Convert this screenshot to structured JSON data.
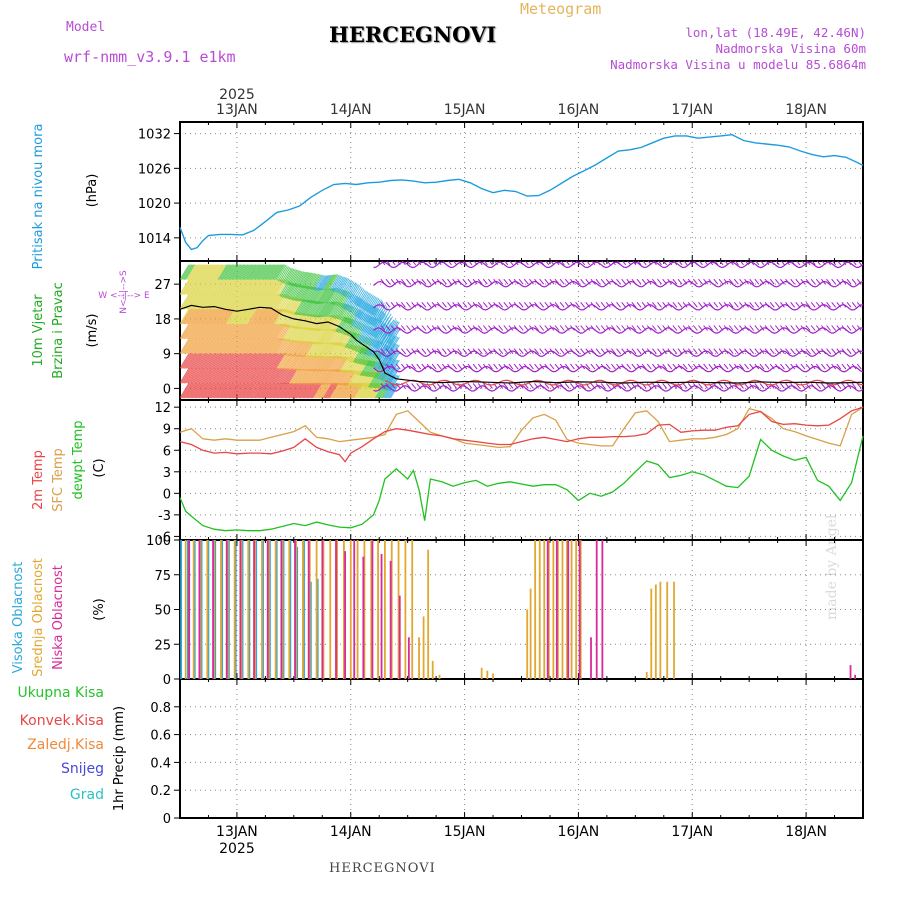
{
  "header": {
    "title": "HERCEGNOVI",
    "subtitle": "Meteogram",
    "model_label": "Model",
    "model_value": "wrf-nmm_v3.9.1 e1km",
    "location_coords": "lon,lat (18.49E, 42.46N)",
    "elevation": "Nadmorska Visina 60m",
    "model_elevation": "Nadmorska Visina u modelu 85.6864m",
    "footer_title": "HERCEGNOVI",
    "watermark": "made by Angel"
  },
  "colors": {
    "pressure": "#1e9be0",
    "wind_label": "#22aa22",
    "wind_barbs": "#a020c8",
    "wind_speed_line": "#000000",
    "temp_2m": "#e84646",
    "sfc_temp": "#d8a048",
    "dewpoint": "#22c022",
    "high_cloud": "#2aa8d8",
    "mid_cloud": "#e0a830",
    "low_cloud": "#d82a9a",
    "precip_total": "#2ac22a",
    "precip_conv": "#e84646",
    "precip_frozen": "#f08a3a",
    "precip_snow": "#4646e0",
    "precip_hail": "#2ac2c2"
  },
  "chart_data": [
    {
      "type": "line",
      "panel": "pressure",
      "xlabel_top_year": "2025",
      "x_ticks": [
        "13JAN",
        "14JAN",
        "15JAN",
        "16JAN",
        "17JAN",
        "18JAN"
      ],
      "xlim_days": [
        12.5,
        18.5
      ],
      "ylabel_lines": [
        "Pritisak na nivou mora",
        "(hPa)"
      ],
      "yticks": [
        1014,
        1020,
        1026,
        1032
      ],
      "ylim": [
        1010,
        1034
      ],
      "series": [
        {
          "name": "Pritisak na nivou mora",
          "x": [
            12.5,
            12.55,
            12.6,
            12.65,
            12.7,
            12.75,
            12.85,
            12.95,
            13.05,
            13.15,
            13.25,
            13.35,
            13.45,
            13.55,
            13.65,
            13.75,
            13.85,
            13.95,
            14.05,
            14.15,
            14.25,
            14.35,
            14.45,
            14.55,
            14.65,
            14.75,
            14.85,
            14.95,
            15.05,
            15.15,
            15.25,
            15.35,
            15.45,
            15.55,
            15.65,
            15.75,
            15.85,
            15.95,
            16.05,
            16.15,
            16.25,
            16.35,
            16.45,
            16.55,
            16.65,
            16.75,
            16.85,
            16.95,
            17.05,
            17.15,
            17.25,
            17.35,
            17.45,
            17.55,
            17.65,
            17.75,
            17.85,
            17.95,
            18.05,
            18.15,
            18.25,
            18.35,
            18.45,
            18.5
          ],
          "y": [
            1015.8,
            1013.2,
            1012.0,
            1012.3,
            1013.5,
            1014.4,
            1014.6,
            1014.6,
            1014.5,
            1015.3,
            1016.8,
            1018.4,
            1018.8,
            1019.5,
            1021.0,
            1022.2,
            1023.2,
            1023.4,
            1023.2,
            1023.5,
            1023.6,
            1023.9,
            1024.0,
            1023.8,
            1023.5,
            1023.6,
            1023.9,
            1024.1,
            1023.5,
            1022.5,
            1021.8,
            1022.2,
            1022.0,
            1021.2,
            1021.3,
            1022.2,
            1023.4,
            1024.6,
            1025.6,
            1026.6,
            1027.8,
            1029.0,
            1029.2,
            1029.6,
            1030.4,
            1031.2,
            1031.6,
            1031.6,
            1031.2,
            1031.4,
            1031.6,
            1031.8,
            1030.8,
            1030.4,
            1030.2,
            1030.0,
            1029.7,
            1029.0,
            1028.4,
            1028.0,
            1028.2,
            1027.9,
            1027.0,
            1026.5
          ]
        }
      ]
    },
    {
      "type": "line",
      "panel": "wind",
      "ylabel_lines": [
        "10m Vjetar",
        "Brzina i Pravac",
        "(m/s)"
      ],
      "compass_label": "W <--|--> E",
      "compass_vertical": "N<--|-->S",
      "yticks": [
        0,
        9,
        18,
        27
      ],
      "ylim": [
        -3,
        33
      ],
      "series": [
        {
          "name": "10m Vjetar Brzina",
          "x": [
            12.5,
            12.6,
            12.7,
            12.8,
            12.9,
            13.0,
            13.1,
            13.2,
            13.3,
            13.4,
            13.5,
            13.6,
            13.7,
            13.8,
            13.9,
            14.0,
            14.05,
            14.1,
            14.15,
            14.2,
            14.25,
            14.3,
            14.4,
            14.6,
            14.8,
            15.0,
            15.2,
            15.4,
            15.6,
            15.8,
            16.0,
            16.2,
            16.4,
            16.6,
            16.8,
            17.0,
            17.2,
            17.4,
            17.6,
            17.8,
            18.0,
            18.2,
            18.4,
            18.5
          ],
          "y": [
            20.5,
            21.5,
            21.0,
            21.2,
            20.5,
            20.0,
            20.5,
            21.0,
            20.8,
            19.0,
            18.0,
            17.5,
            16.8,
            17.2,
            16.0,
            14.0,
            12.5,
            11.5,
            10.5,
            9.5,
            7.5,
            4.0,
            2.5,
            1.8,
            1.5,
            1.8,
            1.6,
            1.4,
            1.8,
            1.5,
            1.7,
            1.6,
            1.4,
            1.6,
            1.5,
            1.6,
            1.5,
            1.4,
            1.7,
            1.5,
            1.6,
            1.4,
            1.5,
            1.6
          ]
        }
      ]
    },
    {
      "type": "line",
      "panel": "temperature",
      "ylabel_lines": [
        "2m Temp",
        "SFC Temp",
        "dewpt Temp",
        "(C)"
      ],
      "yticks": [
        -6,
        -3,
        0,
        3,
        6,
        9,
        12
      ],
      "ylim": [
        -6.5,
        13
      ],
      "series": [
        {
          "name": "2m Temp",
          "x": [
            12.5,
            12.6,
            12.7,
            12.8,
            12.9,
            13.0,
            13.1,
            13.2,
            13.3,
            13.4,
            13.5,
            13.6,
            13.7,
            13.8,
            13.9,
            13.95,
            14.0,
            14.1,
            14.2,
            14.3,
            14.4,
            14.5,
            14.6,
            14.7,
            14.8,
            14.9,
            15.0,
            15.1,
            15.2,
            15.3,
            15.4,
            15.5,
            15.6,
            15.7,
            15.8,
            15.9,
            16.0,
            16.1,
            16.2,
            16.3,
            16.4,
            16.5,
            16.6,
            16.7,
            16.8,
            16.9,
            17.0,
            17.1,
            17.2,
            17.3,
            17.4,
            17.5,
            17.6,
            17.7,
            17.8,
            17.9,
            18.0,
            18.1,
            18.2,
            18.3,
            18.4,
            18.5
          ],
          "y": [
            7.2,
            6.8,
            6.0,
            5.6,
            5.7,
            5.5,
            5.6,
            5.6,
            5.5,
            5.9,
            6.4,
            7.6,
            6.4,
            5.8,
            5.4,
            4.4,
            5.6,
            6.5,
            7.6,
            8.6,
            9.0,
            8.8,
            8.5,
            8.2,
            8.0,
            7.6,
            7.4,
            7.2,
            7.0,
            6.8,
            6.8,
            7.2,
            7.6,
            7.8,
            7.5,
            7.2,
            7.6,
            7.8,
            7.8,
            7.9,
            7.9,
            8.0,
            8.3,
            9.5,
            9.6,
            8.5,
            8.7,
            8.8,
            8.8,
            9.2,
            9.4,
            11.0,
            11.4,
            10.0,
            9.6,
            9.7,
            9.5,
            9.4,
            9.5,
            10.4,
            11.5,
            12.0
          ]
        },
        {
          "name": "SFC Temp",
          "x": [
            12.5,
            12.6,
            12.7,
            12.8,
            12.9,
            13.0,
            13.1,
            13.2,
            13.3,
            13.4,
            13.5,
            13.6,
            13.7,
            13.8,
            13.9,
            14.0,
            14.1,
            14.2,
            14.3,
            14.4,
            14.5,
            14.6,
            14.7,
            14.8,
            14.9,
            15.0,
            15.1,
            15.2,
            15.3,
            15.4,
            15.5,
            15.6,
            15.7,
            15.8,
            15.9,
            16.0,
            16.1,
            16.2,
            16.3,
            16.4,
            16.5,
            16.6,
            16.7,
            16.8,
            16.9,
            17.0,
            17.1,
            17.2,
            17.3,
            17.4,
            17.5,
            17.6,
            17.7,
            17.8,
            17.9,
            18.0,
            18.1,
            18.2,
            18.3,
            18.4,
            18.5
          ],
          "y": [
            8.5,
            9.0,
            7.6,
            7.4,
            7.6,
            7.4,
            7.4,
            7.4,
            7.8,
            8.2,
            8.6,
            9.4,
            7.8,
            7.6,
            7.2,
            7.4,
            7.6,
            7.8,
            8.2,
            11.0,
            11.5,
            10.0,
            8.5,
            8.0,
            7.6,
            7.0,
            6.8,
            6.6,
            6.4,
            6.5,
            8.8,
            10.5,
            11.0,
            10.2,
            7.5,
            7.0,
            6.8,
            6.6,
            6.6,
            9.0,
            11.2,
            11.5,
            10.0,
            7.2,
            7.4,
            7.6,
            7.6,
            7.8,
            8.2,
            9.0,
            11.8,
            11.4,
            10.4,
            9.0,
            8.6,
            8.0,
            7.5,
            7.0,
            6.6,
            11.0,
            12.0
          ]
        },
        {
          "name": "dewpt Temp",
          "x": [
            12.5,
            12.55,
            12.6,
            12.7,
            12.8,
            12.9,
            13.0,
            13.1,
            13.2,
            13.3,
            13.4,
            13.5,
            13.6,
            13.7,
            13.8,
            13.9,
            14.0,
            14.1,
            14.2,
            14.25,
            14.3,
            14.4,
            14.5,
            14.55,
            14.6,
            14.65,
            14.7,
            14.8,
            14.9,
            15.0,
            15.1,
            15.2,
            15.3,
            15.4,
            15.5,
            15.6,
            15.7,
            15.8,
            15.9,
            16.0,
            16.1,
            16.2,
            16.3,
            16.4,
            16.5,
            16.6,
            16.7,
            16.8,
            16.9,
            17.0,
            17.1,
            17.2,
            17.3,
            17.4,
            17.5,
            17.6,
            17.7,
            17.8,
            17.9,
            18.0,
            18.1,
            18.2,
            18.3,
            18.4,
            18.5
          ],
          "y": [
            -0.6,
            -2.5,
            -3.2,
            -4.5,
            -5.0,
            -5.2,
            -5.1,
            -5.2,
            -5.2,
            -5.0,
            -4.6,
            -4.2,
            -4.5,
            -4.0,
            -4.4,
            -4.7,
            -4.8,
            -4.3,
            -3.0,
            -1.0,
            2.0,
            3.4,
            2.0,
            3.2,
            0.5,
            -3.8,
            2.0,
            1.6,
            1.0,
            1.5,
            1.8,
            1.0,
            1.4,
            1.6,
            1.3,
            1.0,
            1.2,
            1.2,
            0.5,
            -1.0,
            0.0,
            -0.4,
            0.2,
            1.4,
            3.0,
            4.5,
            4.0,
            2.2,
            2.5,
            3.0,
            2.6,
            1.8,
            1.0,
            0.8,
            2.4,
            7.5,
            6.0,
            5.2,
            4.6,
            5.0,
            1.8,
            1.0,
            -1.0,
            1.5,
            8.0
          ]
        }
      ]
    },
    {
      "type": "bar",
      "panel": "clouds",
      "ylabel_lines": [
        "Visoka Oblacnost",
        "Srednja Oblacnost",
        "Niska Oblacnost",
        "(%)"
      ],
      "yticks": [
        0,
        25,
        50,
        75,
        100
      ],
      "ylim": [
        0,
        100
      ],
      "series": [
        {
          "name": "Visoka Oblacnost",
          "x": [
            12.52,
            12.58,
            12.64,
            12.7,
            12.76,
            12.82,
            12.88,
            12.94,
            13.0,
            13.06,
            13.12,
            13.18,
            13.24,
            13.3,
            13.36,
            13.42,
            13.48,
            13.54,
            13.6,
            13.66,
            13.72
          ],
          "y": [
            100,
            100,
            100,
            100,
            100,
            100,
            100,
            100,
            100,
            100,
            100,
            100,
            100,
            100,
            100,
            100,
            100,
            95,
            100,
            70,
            72
          ]
        },
        {
          "name": "Srednja Oblacnost",
          "x": [
            12.55,
            12.62,
            12.68,
            12.74,
            12.8,
            12.86,
            12.92,
            12.98,
            13.04,
            13.1,
            13.16,
            13.22,
            13.28,
            13.34,
            13.4,
            13.46,
            13.52,
            13.58,
            13.64,
            13.7,
            13.76,
            13.82,
            13.88,
            13.94,
            14.0,
            14.06,
            14.12,
            14.18,
            14.24,
            14.3,
            14.36,
            14.42,
            14.48,
            14.54,
            14.6,
            14.64,
            14.68,
            14.72,
            14.78,
            15.15,
            15.2,
            15.25,
            15.55,
            15.58,
            15.62,
            15.66,
            15.7,
            15.74,
            15.78,
            15.82,
            15.86,
            15.9,
            15.94,
            15.98,
            16.02,
            16.6,
            16.64,
            16.68,
            16.72,
            16.78,
            16.84
          ],
          "y": [
            100,
            100,
            100,
            100,
            100,
            100,
            100,
            100,
            100,
            100,
            100,
            100,
            100,
            100,
            100,
            100,
            100,
            100,
            100,
            100,
            100,
            100,
            100,
            100,
            100,
            100,
            100,
            100,
            100,
            100,
            100,
            100,
            100,
            100,
            30,
            45,
            93,
            13,
            3,
            8,
            6,
            4,
            50,
            65,
            100,
            100,
            100,
            100,
            100,
            100,
            100,
            100,
            100,
            100,
            100,
            5,
            65,
            68,
            70,
            70,
            70
          ]
        },
        {
          "name": "Niska Oblacnost",
          "x": [
            12.57,
            12.66,
            12.78,
            12.9,
            13.02,
            13.14,
            13.26,
            13.38,
            13.5,
            13.62,
            13.74,
            13.86,
            13.94,
            14.02,
            14.1,
            14.18,
            14.26,
            14.34,
            14.42,
            14.5,
            15.72,
            15.8,
            15.9,
            16.0,
            16.1,
            16.15,
            16.2,
            18.38,
            18.42
          ],
          "y": [
            100,
            100,
            100,
            100,
            100,
            100,
            100,
            100,
            100,
            100,
            100,
            100,
            92,
            100,
            88,
            100,
            90,
            85,
            60,
            30,
            100,
            100,
            100,
            100,
            30,
            100,
            100,
            10,
            3
          ]
        }
      ]
    },
    {
      "type": "line",
      "panel": "precipitation",
      "ylabel_lines": [
        "1hr Precip (mm)"
      ],
      "legend": [
        "Ukupna Kisa",
        "Konvek.Kisa",
        "Zaledj.Kisa",
        "Snijeg",
        "Grad"
      ],
      "yticks": [
        0,
        0.2,
        0.4,
        0.6,
        0.8
      ],
      "ytick_labels": [
        "0",
        "0.2",
        "0.4",
        "0.6",
        "0.8"
      ],
      "ylim": [
        0,
        1
      ],
      "xlabel_bottom_year": "2025",
      "series": [
        {
          "name": "Ukupna Kisa",
          "values": []
        }
      ]
    }
  ]
}
